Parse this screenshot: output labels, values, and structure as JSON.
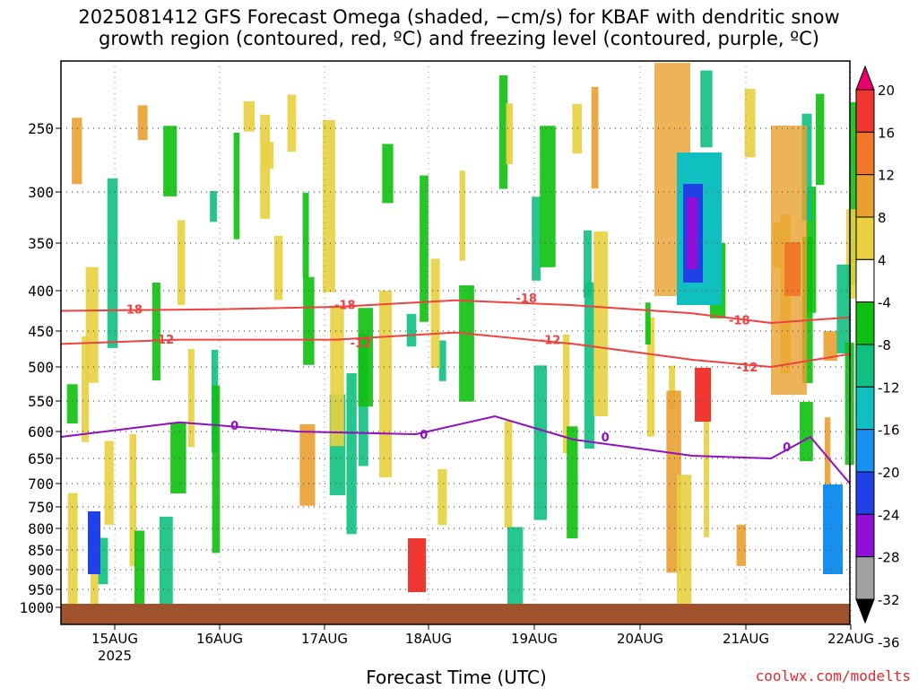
{
  "title_line1": "2025081412 GFS Forecast Omega (shaded, −cm/s) for KBAF with dendritic snow",
  "title_line2": "growth region (contoured, red, ºC) and freezing level (contoured, purple, ºC)",
  "credit": "coolwx.com/modelts",
  "chart_data": {
    "type": "heatmap",
    "xlabel": "Forecast Time (UTC)",
    "ylabel": "",
    "x_ticks": [
      "15AUG",
      "16AUG",
      "17AUG",
      "18AUG",
      "19AUG",
      "20AUG",
      "21AUG",
      "22AUG"
    ],
    "x_tick_sub": {
      "15AUG": "2025"
    },
    "y_ticks": [
      250,
      300,
      350,
      400,
      450,
      500,
      550,
      600,
      650,
      700,
      750,
      800,
      850,
      900,
      950,
      1000
    ],
    "y_range_hpa": [
      200,
      1000
    ],
    "grid": true,
    "colorbar": {
      "levels": [
        20,
        16,
        12,
        8,
        4,
        -4,
        -8,
        -12,
        -16,
        -20,
        -24,
        -28,
        -32,
        -36
      ],
      "colors": [
        "#e8006a",
        "#f03830",
        "#f07828",
        "#e8a030",
        "#e8d040",
        "#ffffff",
        "#10c010",
        "#10c080",
        "#10c0c0",
        "#1890f0",
        "#2040e8",
        "#9010d8",
        "#a0a0a0",
        "#000000"
      ]
    },
    "contours": [
      {
        "label": "-18",
        "color": "#f04040",
        "points_hpa": [
          [
            0,
            425
          ],
          [
            0.2,
            423
          ],
          [
            0.35,
            420
          ],
          [
            0.5,
            412
          ],
          [
            0.65,
            418
          ],
          [
            0.8,
            428
          ],
          [
            0.9,
            440
          ],
          [
            1.0,
            433
          ]
        ]
      },
      {
        "label": "-12",
        "color": "#f04040",
        "points_hpa": [
          [
            0,
            468
          ],
          [
            0.15,
            462
          ],
          [
            0.35,
            462
          ],
          [
            0.5,
            452
          ],
          [
            0.65,
            468
          ],
          [
            0.8,
            490
          ],
          [
            0.9,
            500
          ],
          [
            1.0,
            482
          ]
        ]
      },
      {
        "label": "0",
        "color": "#9010c0",
        "points_hpa": [
          [
            0,
            610
          ],
          [
            0.15,
            585
          ],
          [
            0.3,
            600
          ],
          [
            0.45,
            605
          ],
          [
            0.55,
            575
          ],
          [
            0.65,
            615
          ],
          [
            0.8,
            645
          ],
          [
            0.9,
            650
          ],
          [
            0.95,
            610
          ],
          [
            1.0,
            700
          ]
        ]
      }
    ],
    "contour_labels": [
      {
        "text": "-18",
        "x": 0.09,
        "p": 423
      },
      {
        "text": "-18",
        "x": 0.36,
        "p": 417
      },
      {
        "text": "-18",
        "x": 0.59,
        "p": 409
      },
      {
        "text": "-18",
        "x": 0.86,
        "p": 436
      },
      {
        "text": "-12",
        "x": 0.13,
        "p": 461
      },
      {
        "text": "-12",
        "x": 0.38,
        "p": 466
      },
      {
        "text": "-12",
        "x": 0.62,
        "p": 462
      },
      {
        "text": "-12",
        "x": 0.87,
        "p": 500
      },
      {
        "text": "0",
        "x": 0.22,
        "p": 590
      },
      {
        "text": "0",
        "x": 0.46,
        "p": 605
      },
      {
        "text": "0",
        "x": 0.69,
        "p": 610
      },
      {
        "text": "0",
        "x": 0.92,
        "p": 628
      }
    ]
  }
}
